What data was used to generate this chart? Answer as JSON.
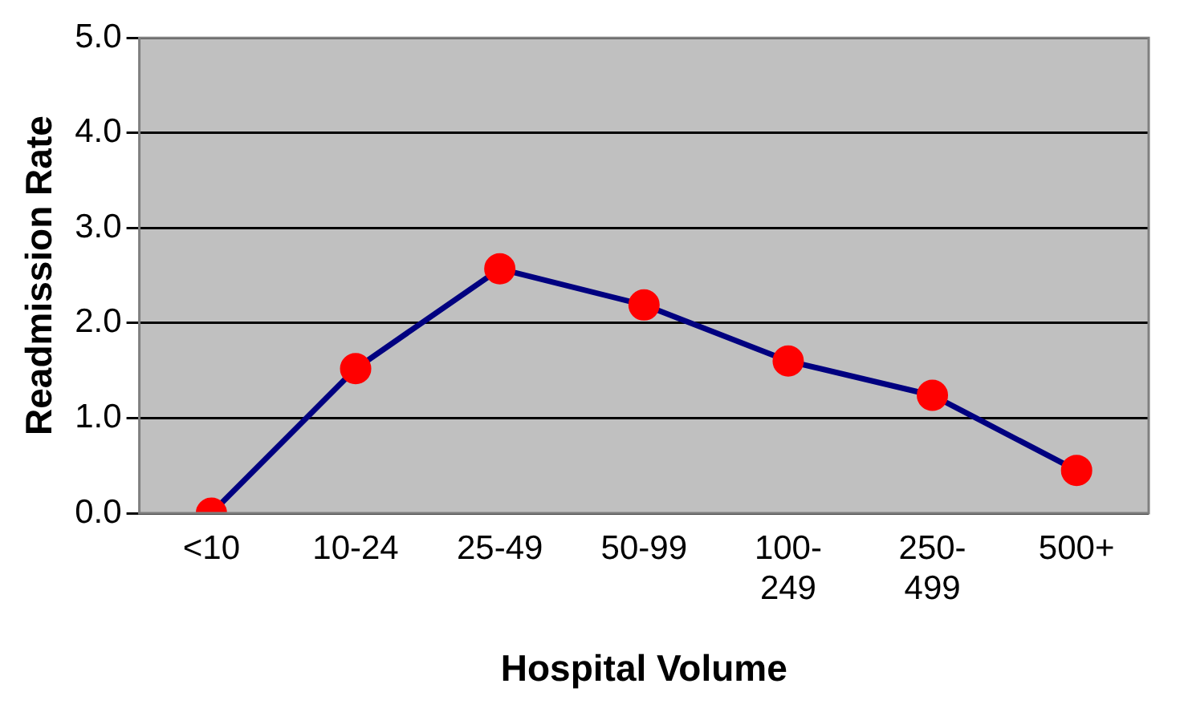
{
  "chart_data": {
    "type": "line",
    "xlabel": "Hospital Volume",
    "ylabel": "Readmission Rate",
    "categories": [
      "<10",
      "10-24",
      "25-49",
      "50-99",
      "100-249",
      "250-499",
      "500+"
    ],
    "series": [
      {
        "color": "#000080",
        "values": [
          0.0,
          1.52,
          2.57,
          2.19,
          1.6,
          1.24,
          0.45
        ]
      }
    ],
    "ylim": [
      0,
      5
    ],
    "yticks": [
      {
        "value": 0,
        "label": "0.0"
      },
      {
        "value": 1,
        "label": "1.0"
      },
      {
        "value": 2,
        "label": "2.0"
      },
      {
        "value": 3,
        "label": "3.0"
      },
      {
        "value": 4,
        "label": "4.0"
      },
      {
        "value": 5,
        "label": "5.0"
      }
    ],
    "grid": "y",
    "marker": "circle",
    "line_style": "solid",
    "legend": false
  }
}
